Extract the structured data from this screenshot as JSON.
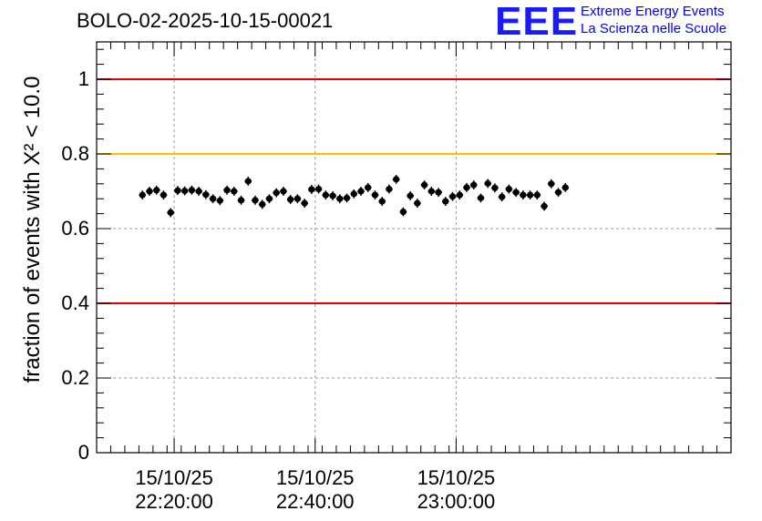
{
  "chart_data": {
    "type": "scatter",
    "title": "BOLO-02-2025-10-15-00021",
    "ylabel": "fraction of events with X² < 10.0",
    "xlabel": "",
    "ylim": [
      0,
      1.1
    ],
    "x_range_minutes": [
      -11,
      79
    ],
    "x_unit": "minutes after 2025-10-15 22:20:00",
    "x_ticks": [
      {
        "date": "15/10/25",
        "time": "22:20:00",
        "minute": 0
      },
      {
        "date": "15/10/25",
        "time": "22:40:00",
        "minute": 20
      },
      {
        "date": "15/10/25",
        "time": "23:00:00",
        "minute": 40
      }
    ],
    "y_ticks": [
      "0",
      "0.2",
      "0.4",
      "0.6",
      "0.8",
      "1"
    ],
    "y_tick_values": [
      0,
      0.2,
      0.4,
      0.6,
      0.8,
      1
    ],
    "grid": true,
    "reference_lines": [
      {
        "y": 1.0,
        "color": "#e00000"
      },
      {
        "y": 0.8,
        "color": "#ffbf00"
      },
      {
        "y": 0.4,
        "color": "#e00000"
      }
    ],
    "series": [
      {
        "color": "#000000",
        "x_step_minutes": 1.0,
        "x_start_minute": -4.5,
        "y_error": 0.012,
        "values": [
          0.69,
          0.7,
          0.703,
          0.69,
          0.643,
          0.702,
          0.701,
          0.703,
          0.7,
          0.691,
          0.68,
          0.675,
          0.703,
          0.7,
          0.676,
          0.727,
          0.676,
          0.665,
          0.68,
          0.696,
          0.7,
          0.678,
          0.68,
          0.668,
          0.705,
          0.706,
          0.69,
          0.688,
          0.68,
          0.682,
          0.693,
          0.7,
          0.71,
          0.69,
          0.673,
          0.706,
          0.732,
          0.645,
          0.688,
          0.668,
          0.717,
          0.7,
          0.697,
          0.673,
          0.686,
          0.69,
          0.71,
          0.717,
          0.682,
          0.721,
          0.709,
          0.685,
          0.706,
          0.697,
          0.69,
          0.69,
          0.69,
          0.66,
          0.72,
          0.697,
          0.71
        ]
      }
    ]
  },
  "logo": {
    "mark": "EEE",
    "line1": "Extreme Energy Events",
    "line2": "La Scienza nelle Scuole"
  }
}
